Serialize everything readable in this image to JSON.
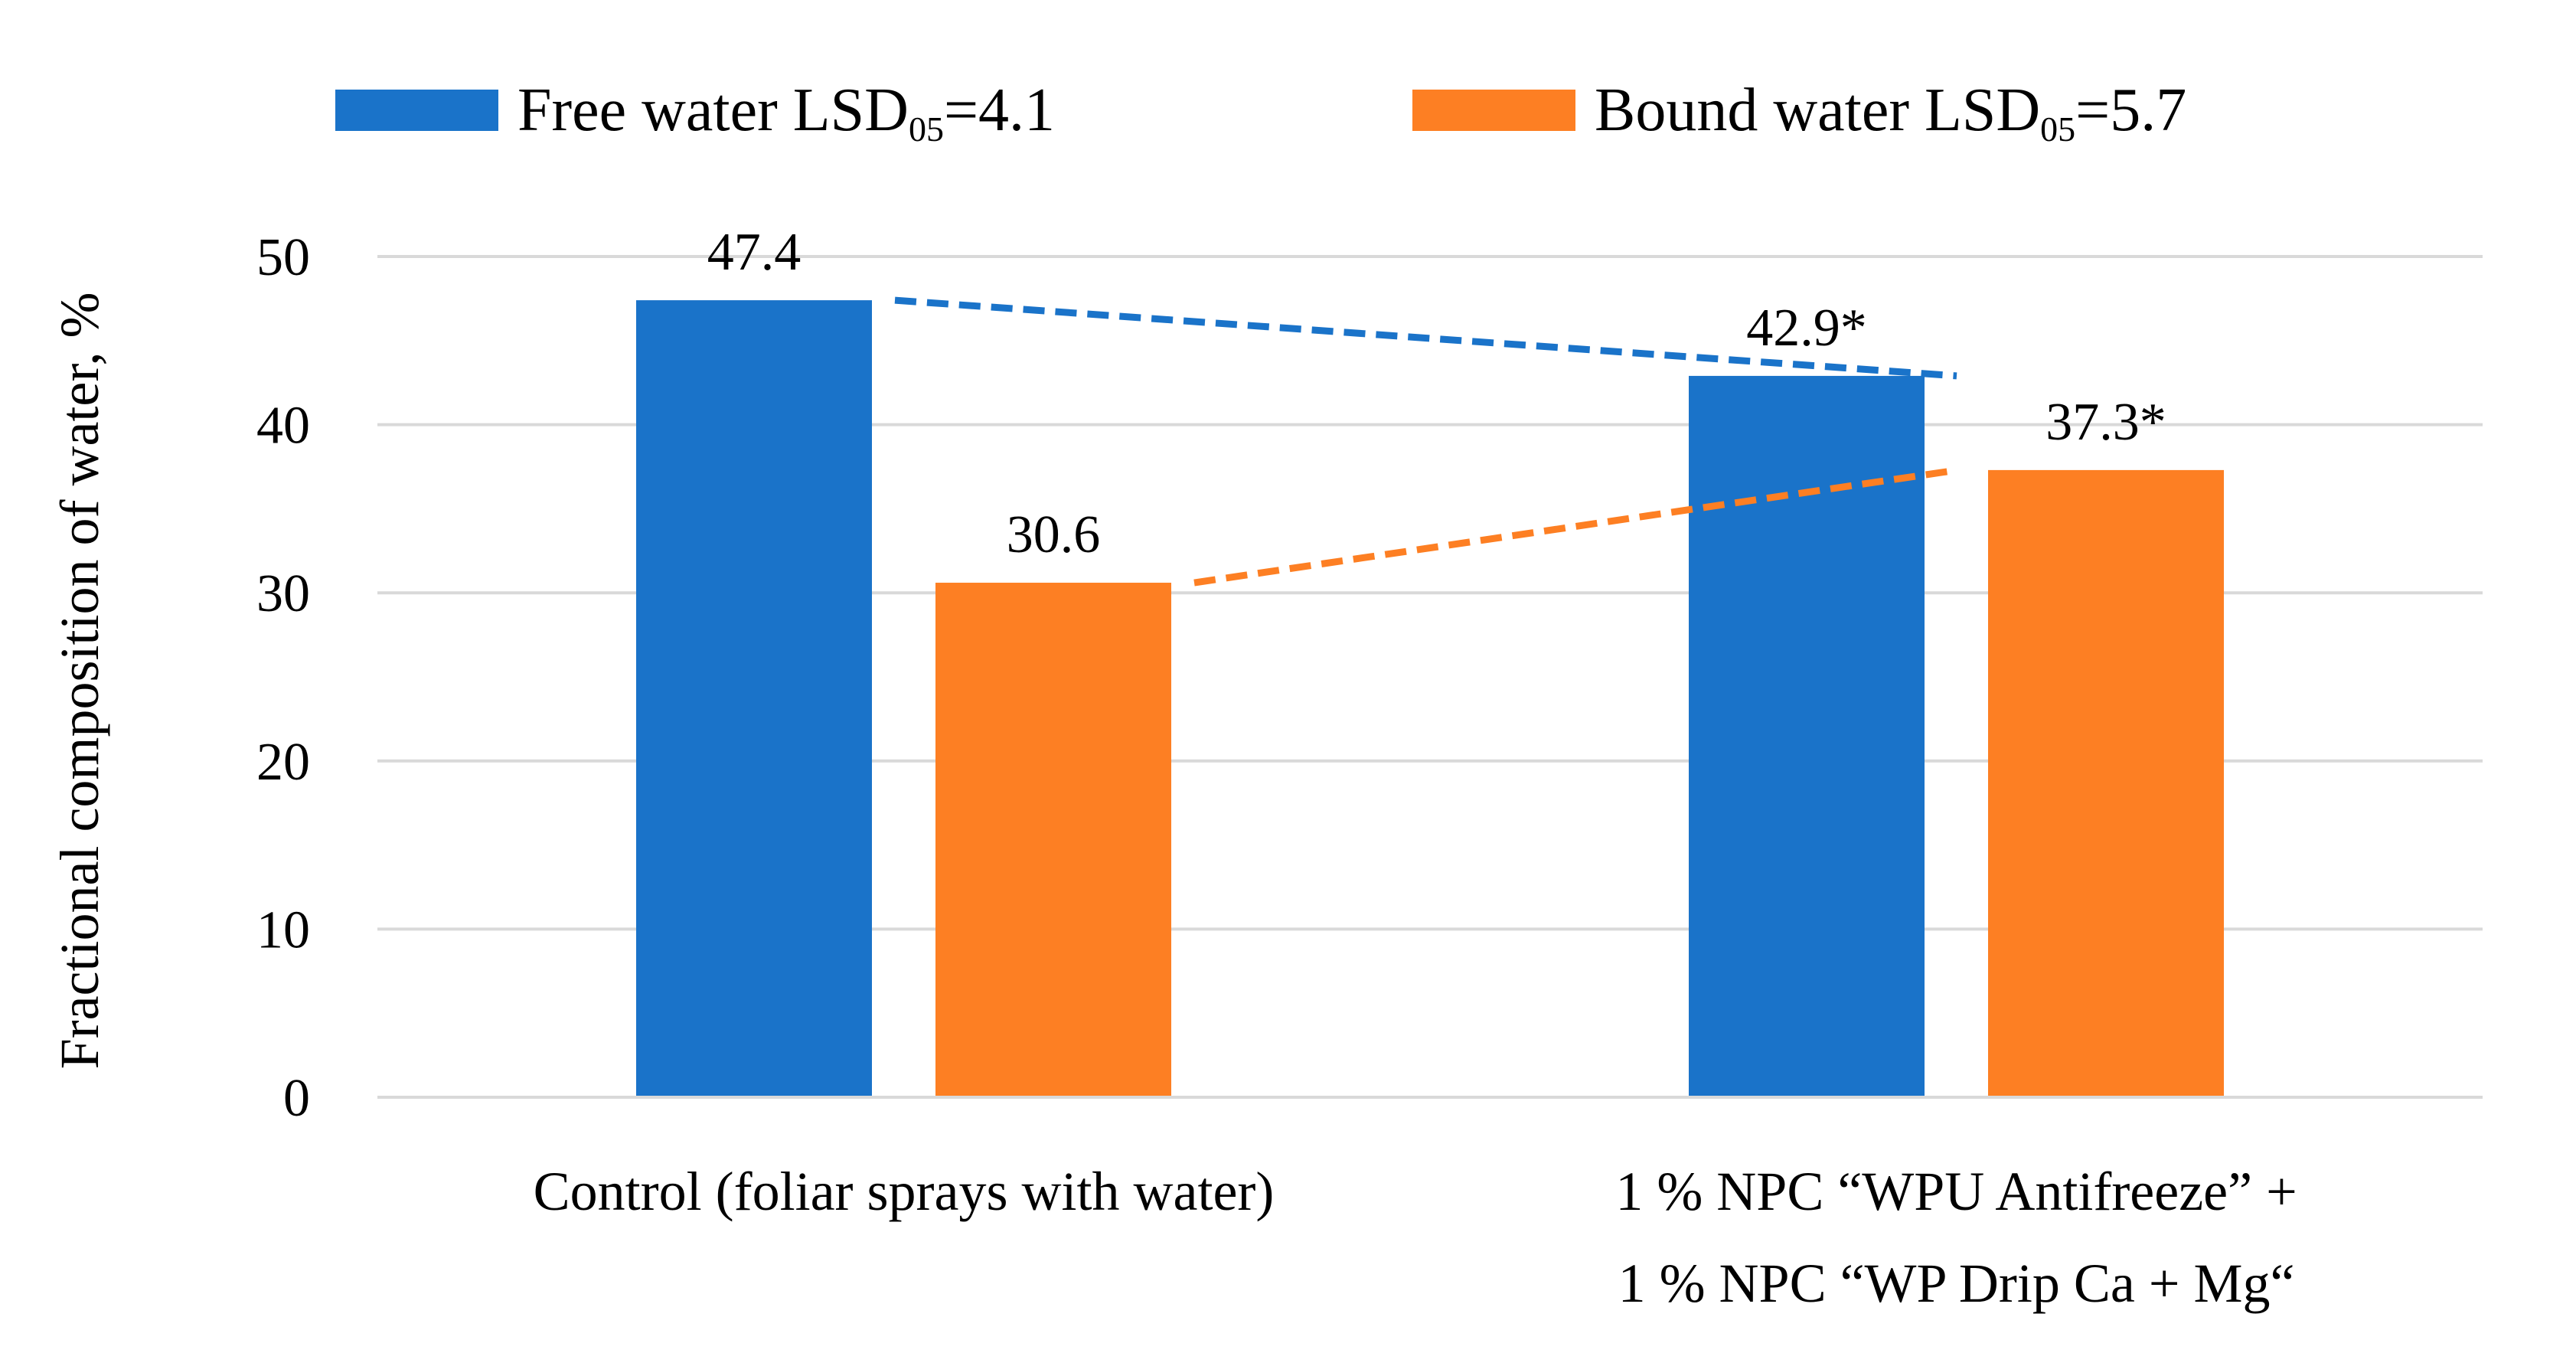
{
  "chart_data": {
    "type": "bar",
    "title": "",
    "xlabel": "",
    "ylabel": "Fractional composition of water, %",
    "ylim": [
      0,
      50
    ],
    "yticks": [
      0,
      10,
      20,
      30,
      40,
      50
    ],
    "grid": true,
    "legend_position": "top",
    "categories": [
      [
        "Control (foliar sprays with water)"
      ],
      [
        "1 % NPC “WPU Antifreeze” +",
        "1 % NPC “WP Drip Ca + Mg“"
      ]
    ],
    "series": [
      {
        "name": "Free water",
        "legend_main": "Free water LSD",
        "legend_sub": "05",
        "legend_tail": "=4.1",
        "lsd05": 4.1,
        "color": "#1a73c9",
        "values": [
          47.4,
          42.9
        ],
        "labels": [
          "47.4",
          "42.9*"
        ],
        "trend_line": true
      },
      {
        "name": "Bound water",
        "legend_main": "Bound water LSD",
        "legend_sub": "05",
        "legend_tail": "=5.7",
        "lsd05": 5.7,
        "color": "#fd7f23",
        "values": [
          30.6,
          37.3
        ],
        "labels": [
          "30.6",
          "37.3*"
        ],
        "trend_line": true
      }
    ],
    "axis_color": "#595959",
    "grid_color": "#d9d9d9",
    "text_color": "#000000"
  }
}
